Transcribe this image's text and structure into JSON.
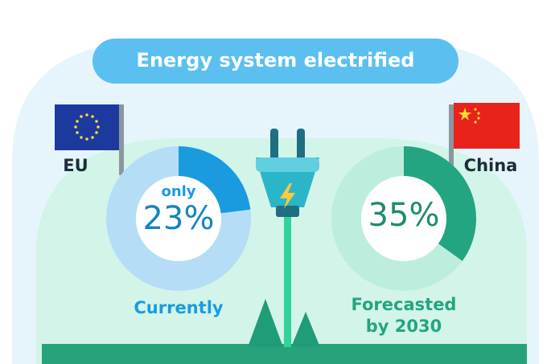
{
  "title": "Energy system electrified",
  "chart_data": [
    {
      "type": "donut",
      "label": "EU",
      "prefix": "only",
      "values": [
        23
      ],
      "value_labels": [
        "23%"
      ],
      "caption": "Currently",
      "color": "#1a9be0",
      "track_color": "#b5def6"
    },
    {
      "type": "donut",
      "label": "China",
      "values": [
        35
      ],
      "value_labels": [
        "35%"
      ],
      "caption": "Forecasted by 2030",
      "color": "#23a582",
      "track_color": "#bdeedd"
    }
  ]
}
